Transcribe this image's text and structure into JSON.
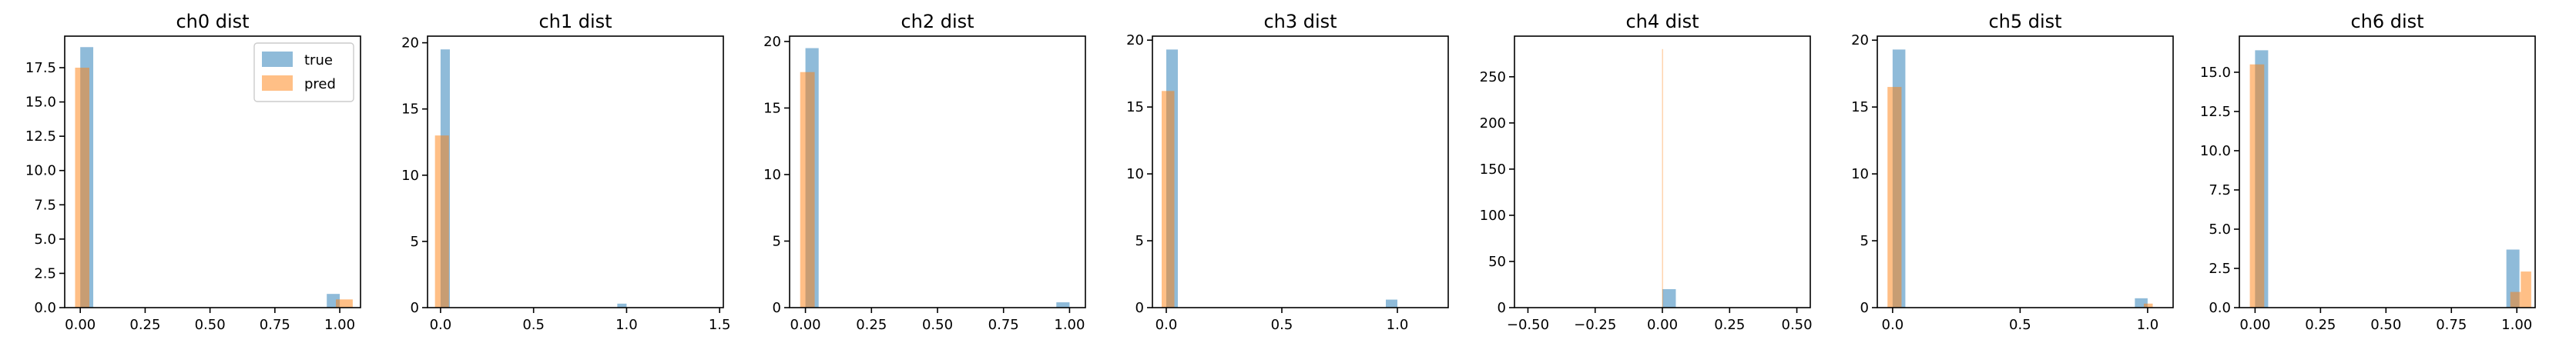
{
  "colors": {
    "true": "#1f77b4",
    "pred": "#ff7f0e",
    "axis": "#000000",
    "background": "#ffffff"
  },
  "chart_data": [
    {
      "type": "histogram",
      "title": "ch0 dist",
      "xlim": [
        -0.06,
        1.08
      ],
      "ylim": [
        0,
        19.8
      ],
      "xticks": [
        0.0,
        0.25,
        0.5,
        0.75,
        1.0
      ],
      "xtick_labels": [
        "0.00",
        "0.25",
        "0.50",
        "0.75",
        "1.00"
      ],
      "yticks": [
        0.0,
        2.5,
        5.0,
        7.5,
        10.0,
        12.5,
        15.0,
        17.5
      ],
      "ytick_labels": [
        "0.0",
        "2.5",
        "5.0",
        "7.5",
        "10.0",
        "12.5",
        "15.0",
        "17.5"
      ],
      "legend": {
        "placement": "top-right",
        "entries": [
          "true",
          "pred"
        ]
      },
      "series": [
        {
          "name": "true",
          "bins": [
            [
              0.0,
              0.05,
              19.0
            ],
            [
              0.95,
              1.0,
              1.0
            ]
          ]
        },
        {
          "name": "pred",
          "bins": [
            [
              -0.02,
              0.035,
              17.5
            ],
            [
              0.985,
              1.05,
              0.6
            ]
          ]
        }
      ]
    },
    {
      "type": "histogram",
      "title": "ch1 dist",
      "xlim": [
        -0.07,
        1.52
      ],
      "ylim": [
        0,
        20.5
      ],
      "xticks": [
        0.0,
        0.5,
        1.0,
        1.5
      ],
      "xtick_labels": [
        "0.0",
        "0.5",
        "1.0",
        "1.5"
      ],
      "yticks": [
        0,
        5,
        10,
        15,
        20
      ],
      "ytick_labels": [
        "0",
        "5",
        "10",
        "15",
        "20"
      ],
      "series": [
        {
          "name": "true",
          "bins": [
            [
              0.0,
              0.05,
              19.5
            ],
            [
              0.95,
              1.0,
              0.3
            ]
          ]
        },
        {
          "name": "pred",
          "bins": [
            [
              -0.03,
              0.045,
              13.0
            ]
          ]
        }
      ]
    },
    {
      "type": "histogram",
      "title": "ch2 dist",
      "xlim": [
        -0.06,
        1.06
      ],
      "ylim": [
        0,
        20.4
      ],
      "xticks": [
        0.0,
        0.25,
        0.5,
        0.75,
        1.0
      ],
      "xtick_labels": [
        "0.00",
        "0.25",
        "0.50",
        "0.75",
        "1.00"
      ],
      "yticks": [
        0,
        5,
        10,
        15,
        20
      ],
      "ytick_labels": [
        "0",
        "5",
        "10",
        "15",
        "20"
      ],
      "series": [
        {
          "name": "true",
          "bins": [
            [
              0.0,
              0.05,
              19.5
            ],
            [
              0.95,
              1.0,
              0.4
            ]
          ]
        },
        {
          "name": "pred",
          "bins": [
            [
              -0.02,
              0.035,
              17.7
            ]
          ]
        }
      ]
    },
    {
      "type": "histogram",
      "title": "ch3 dist",
      "xlim": [
        -0.06,
        1.22
      ],
      "ylim": [
        0,
        20.3
      ],
      "xticks": [
        0.0,
        0.5,
        1.0
      ],
      "xtick_labels": [
        "0.0",
        "0.5",
        "1.0"
      ],
      "yticks": [
        0,
        5,
        10,
        15,
        20
      ],
      "ytick_labels": [
        "0",
        "5",
        "10",
        "15",
        "20"
      ],
      "series": [
        {
          "name": "true",
          "bins": [
            [
              0.0,
              0.05,
              19.3
            ],
            [
              0.95,
              1.0,
              0.6
            ]
          ]
        },
        {
          "name": "pred",
          "bins": [
            [
              -0.02,
              0.035,
              16.2
            ]
          ]
        }
      ]
    },
    {
      "type": "histogram",
      "title": "ch4 dist",
      "xlim": [
        -0.55,
        0.55
      ],
      "ylim": [
        0,
        294
      ],
      "xticks": [
        -0.5,
        -0.25,
        0.0,
        0.25,
        0.5
      ],
      "xtick_labels": [
        "−0.50",
        "−0.25",
        "0.00",
        "0.25",
        "0.50"
      ],
      "yticks": [
        0,
        50,
        100,
        150,
        200,
        250
      ],
      "ytick_labels": [
        "0",
        "50",
        "100",
        "150",
        "200",
        "250"
      ],
      "series": [
        {
          "name": "true",
          "bins": [
            [
              0.0,
              0.05,
              20.0
            ]
          ]
        },
        {
          "name": "pred",
          "bins": [
            [
              -0.001,
              0.001,
              280.0
            ]
          ]
        }
      ]
    },
    {
      "type": "histogram",
      "title": "ch5 dist",
      "xlim": [
        -0.06,
        1.1
      ],
      "ylim": [
        0,
        20.3
      ],
      "xticks": [
        0.0,
        0.5,
        1.0
      ],
      "xtick_labels": [
        "0.0",
        "0.5",
        "1.0"
      ],
      "yticks": [
        0,
        5,
        10,
        15,
        20
      ],
      "ytick_labels": [
        "0",
        "5",
        "10",
        "15",
        "20"
      ],
      "series": [
        {
          "name": "true",
          "bins": [
            [
              0.0,
              0.05,
              19.3
            ],
            [
              0.95,
              1.0,
              0.7
            ]
          ]
        },
        {
          "name": "pred",
          "bins": [
            [
              -0.02,
              0.035,
              16.5
            ],
            [
              0.985,
              1.02,
              0.3
            ]
          ]
        }
      ]
    },
    {
      "type": "histogram",
      "title": "ch6 dist",
      "xlim": [
        -0.06,
        1.07
      ],
      "ylim": [
        0,
        17.3
      ],
      "xticks": [
        0.0,
        0.25,
        0.5,
        0.75,
        1.0
      ],
      "xtick_labels": [
        "0.00",
        "0.25",
        "0.50",
        "0.75",
        "1.00"
      ],
      "yticks": [
        0.0,
        2.5,
        5.0,
        7.5,
        10.0,
        12.5,
        15.0
      ],
      "ytick_labels": [
        "0.0",
        "2.5",
        "5.0",
        "7.5",
        "10.0",
        "12.5",
        "15.0"
      ],
      "series": [
        {
          "name": "true",
          "bins": [
            [
              0.0,
              0.05,
              16.4
            ],
            [
              0.96,
              1.01,
              3.7
            ]
          ]
        },
        {
          "name": "pred",
          "bins": [
            [
              -0.02,
              0.035,
              15.5
            ],
            [
              0.975,
              1.015,
              1.0
            ],
            [
              1.015,
              1.055,
              2.3
            ]
          ]
        }
      ]
    }
  ]
}
